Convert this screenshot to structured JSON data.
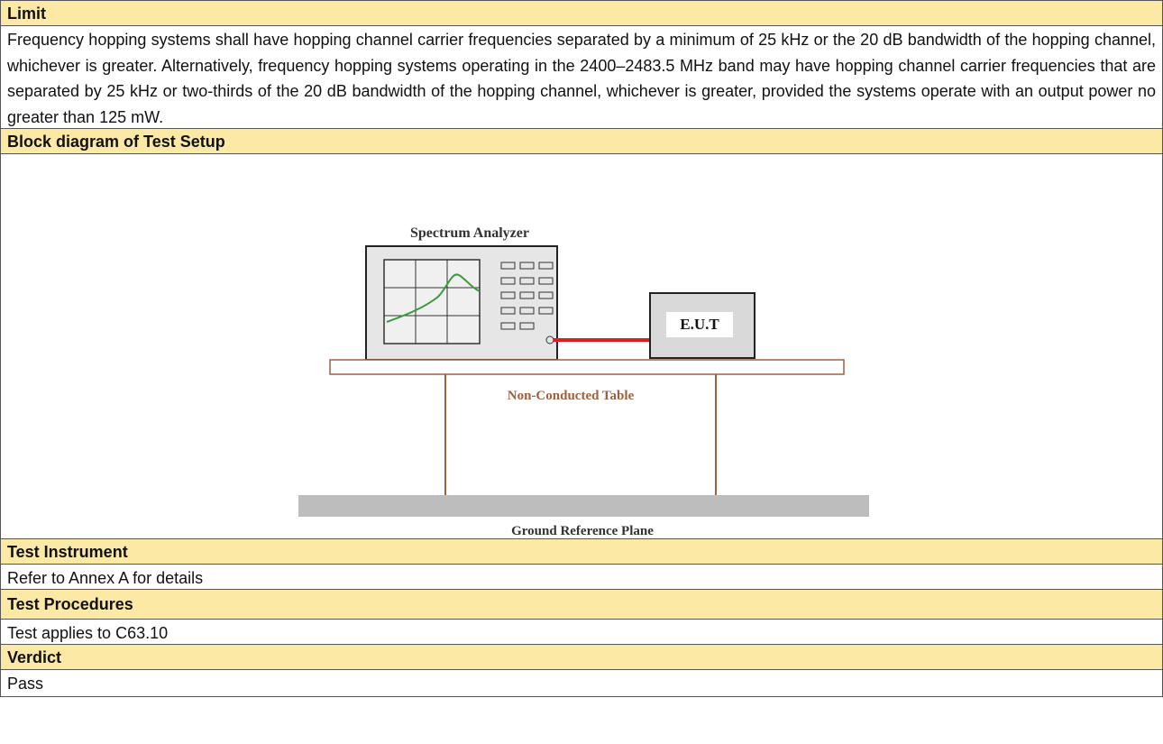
{
  "sections": [
    {
      "heading": "Limit",
      "body": "Frequency hopping systems shall have hopping channel carrier frequencies separated by a minimum of 25 kHz or the 20 dB bandwidth of the hopping channel, whichever is greater. Alternatively, frequency hopping systems operating in the 2400–2483.5 MHz band may have hopping channel carrier frequencies that are separated by 25 kHz or two-thirds of the 20 dB bandwidth of the hopping channel, whichever is greater, provided the systems operate with an output power no greater than 125 mW."
    },
    {
      "heading": "Block diagram of Test Setup"
    },
    {
      "heading": "Test Instrument",
      "body": "Refer to Annex A for details"
    },
    {
      "heading": "Test Procedures",
      "body": "Test applies to C63.10"
    },
    {
      "heading": "Verdict",
      "body": "Pass"
    }
  ],
  "diagram": {
    "analyzer": "Spectrum Analyzer",
    "eut": "E.U.T",
    "table": "Non-Conducted Table",
    "ground": "Ground Reference Plane"
  }
}
